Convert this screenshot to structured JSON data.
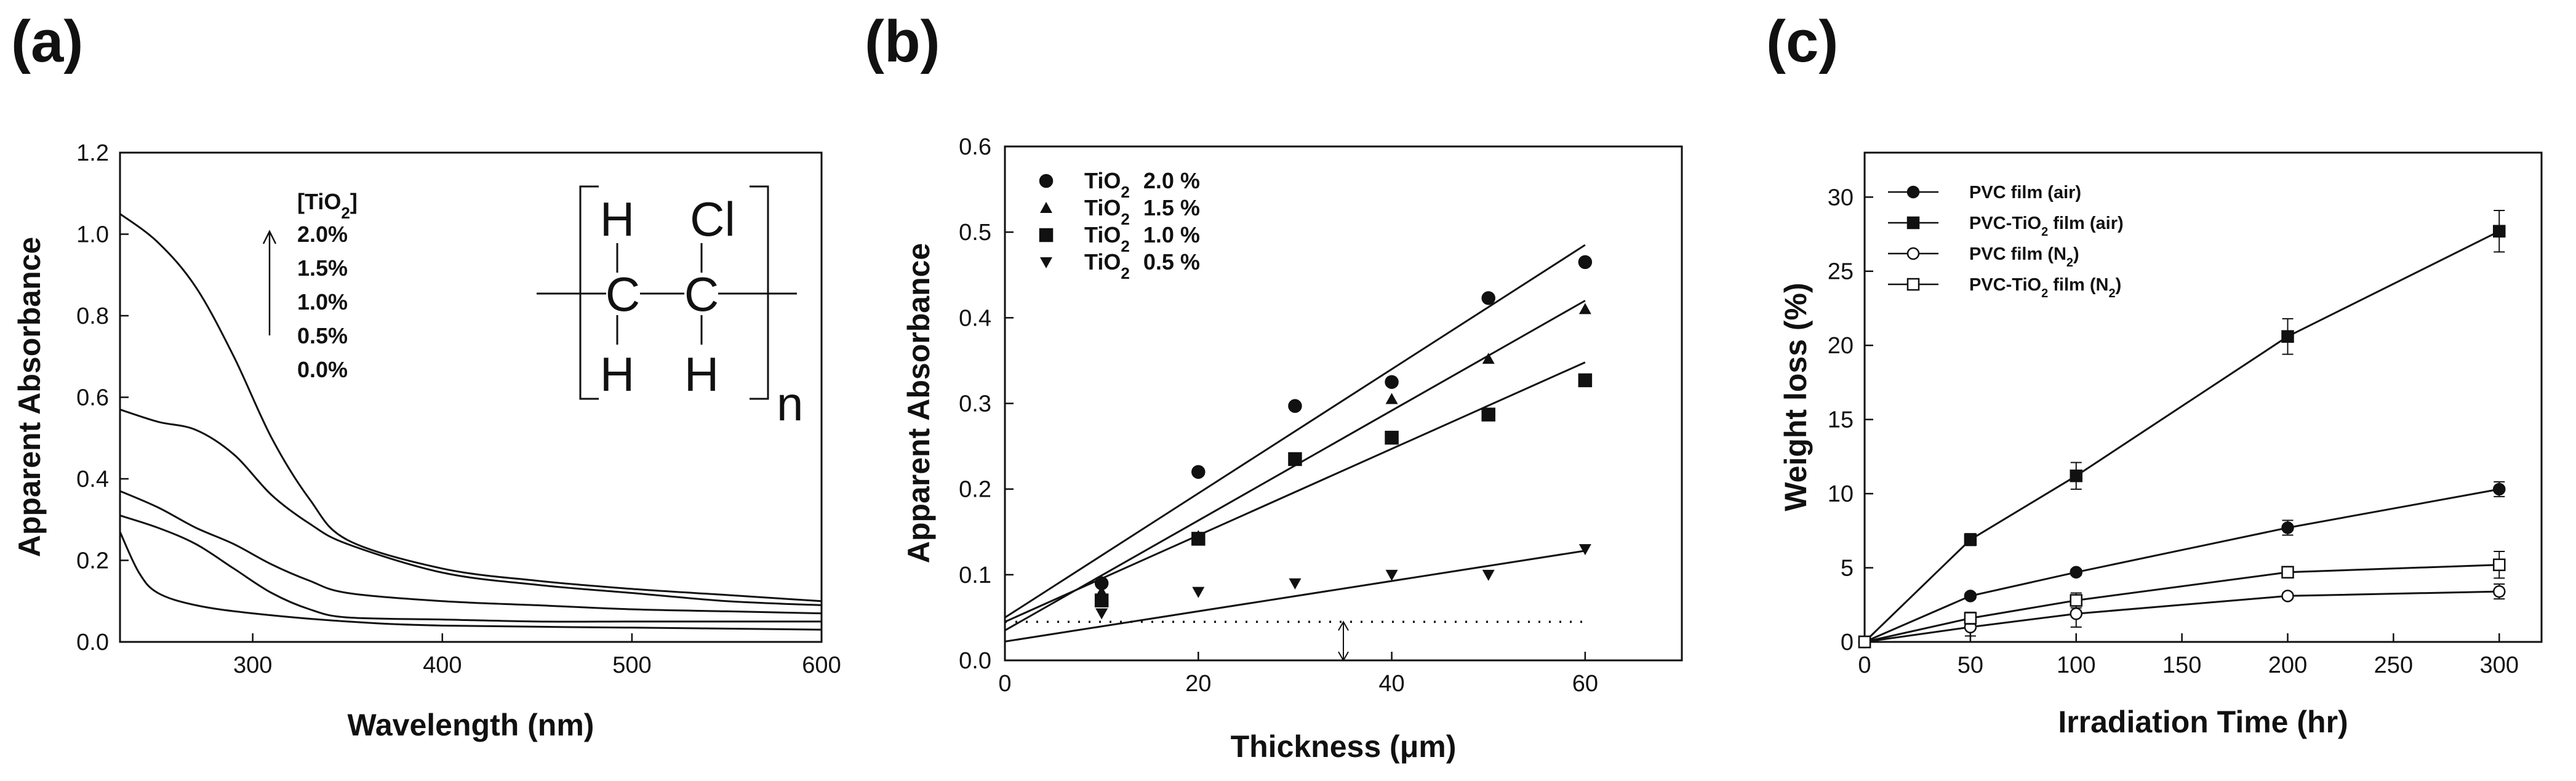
{
  "chart_data": [
    {
      "panel": "(a)",
      "type": "line",
      "xlabel": "Wavelength (nm)",
      "ylabel": "Apparent Absorbance",
      "xlim": [
        230,
        600
      ],
      "ylim": [
        0.0,
        1.2
      ],
      "xticks": [
        "300",
        "400",
        "500",
        "600"
      ],
      "xtick_values": [
        300,
        400,
        500,
        600
      ],
      "yticks": [
        "0.0",
        "0.2",
        "0.4",
        "0.6",
        "0.8",
        "1.0",
        "1.2"
      ],
      "ytick_values": [
        0.0,
        0.2,
        0.4,
        0.6,
        0.8,
        1.0,
        1.2
      ],
      "legend_title_main": "[TiO",
      "legend_title_sub": "2",
      "legend_title_close": "]",
      "legend": [
        "2.0%",
        "1.5%",
        "1.0%",
        "0.5%",
        "0.0%"
      ],
      "structure": {
        "h_top_left": "H",
        "cl_top_right": "Cl",
        "c_left": "C",
        "c_right": "C",
        "h_bottom_left": "H",
        "h_bottom_right": "H",
        "subscript": "n"
      },
      "series": [
        {
          "name": "2.0%",
          "x": [
            230,
            250,
            270,
            290,
            310,
            330,
            350,
            400,
            450,
            500,
            550,
            600
          ],
          "y": [
            1.05,
            0.98,
            0.87,
            0.7,
            0.5,
            0.35,
            0.25,
            0.18,
            0.15,
            0.13,
            0.115,
            0.1
          ]
        },
        {
          "name": "1.5%",
          "x": [
            230,
            250,
            270,
            290,
            310,
            330,
            350,
            400,
            450,
            500,
            550,
            600
          ],
          "y": [
            0.57,
            0.54,
            0.52,
            0.46,
            0.36,
            0.29,
            0.24,
            0.17,
            0.14,
            0.12,
            0.1,
            0.09
          ]
        },
        {
          "name": "1.0%",
          "x": [
            230,
            250,
            270,
            290,
            310,
            330,
            350,
            400,
            450,
            500,
            550,
            600
          ],
          "y": [
            0.37,
            0.33,
            0.28,
            0.24,
            0.19,
            0.15,
            0.12,
            0.1,
            0.09,
            0.08,
            0.075,
            0.07
          ]
        },
        {
          "name": "0.5%",
          "x": [
            230,
            250,
            270,
            290,
            310,
            330,
            350,
            400,
            450,
            500,
            550,
            600
          ],
          "y": [
            0.31,
            0.28,
            0.24,
            0.18,
            0.12,
            0.08,
            0.06,
            0.055,
            0.05,
            0.05,
            0.05,
            0.05
          ]
        },
        {
          "name": "0.0%",
          "x": [
            230,
            240,
            250,
            270,
            300,
            350,
            400,
            500,
            600
          ],
          "y": [
            0.27,
            0.17,
            0.12,
            0.09,
            0.07,
            0.05,
            0.04,
            0.035,
            0.03
          ]
        }
      ]
    },
    {
      "panel": "(b)",
      "type": "scatter",
      "xlabel": "Thickness (μm)",
      "ylabel": "Apparent Absorbance",
      "xlim": [
        0,
        70
      ],
      "ylim": [
        0.0,
        0.6
      ],
      "xticks": [
        "0",
        "20",
        "40",
        "60"
      ],
      "xtick_values": [
        0,
        20,
        40,
        60
      ],
      "yticks": [
        "0.0",
        "0.1",
        "0.2",
        "0.3",
        "0.4",
        "0.5",
        "0.6"
      ],
      "ytick_values": [
        0.0,
        0.1,
        0.2,
        0.3,
        0.4,
        0.5,
        0.6
      ],
      "legend_prefix": "TiO",
      "legend_sub": "2",
      "baseline_y": 0.045,
      "series": [
        {
          "name": "2.0 %",
          "marker": "circle",
          "x": [
            10,
            20,
            30,
            40,
            50,
            60
          ],
          "y": [
            0.09,
            0.22,
            0.297,
            0.325,
            0.423,
            0.465
          ],
          "fit": [
            [
              0,
              0.05
            ],
            [
              60,
              0.485
            ]
          ]
        },
        {
          "name": "1.5 %",
          "marker": "triangle-up",
          "x": [
            10,
            20,
            30,
            40,
            50,
            60
          ],
          "y": [
            0.08,
            0.145,
            0.235,
            0.305,
            0.352,
            0.41
          ],
          "fit": [
            [
              0,
              0.035
            ],
            [
              60,
              0.42
            ]
          ]
        },
        {
          "name": "1.0 %",
          "marker": "square",
          "x": [
            10,
            20,
            30,
            40,
            50,
            60
          ],
          "y": [
            0.07,
            0.142,
            0.235,
            0.26,
            0.287,
            0.327
          ],
          "fit": [
            [
              0,
              0.045
            ],
            [
              60,
              0.348
            ]
          ]
        },
        {
          "name": "0.5 %",
          "marker": "triangle-down",
          "x": [
            10,
            20,
            30,
            40,
            50,
            60
          ],
          "y": [
            0.055,
            0.08,
            0.09,
            0.1,
            0.1,
            0.13
          ],
          "fit": [
            [
              0,
              0.022
            ],
            [
              60,
              0.128
            ]
          ]
        }
      ]
    },
    {
      "panel": "(c)",
      "type": "line",
      "xlabel": "Irradiation Time (hr)",
      "ylabel": "Weight loss (%)",
      "xlim": [
        0,
        320
      ],
      "ylim": [
        0,
        33
      ],
      "xticks": [
        "0",
        "50",
        "100",
        "150",
        "200",
        "250",
        "300"
      ],
      "xtick_values": [
        0,
        50,
        100,
        150,
        200,
        250,
        300
      ],
      "yticks": [
        "0",
        "5",
        "10",
        "15",
        "20",
        "25",
        "30"
      ],
      "ytick_values": [
        0,
        5,
        10,
        15,
        20,
        25,
        30
      ],
      "series": [
        {
          "name": "PVC film (air)",
          "label_main": "PVC film (air)",
          "label_sub": "",
          "label_tail": "",
          "marker": "circle-filled",
          "x": [
            0,
            50,
            100,
            200,
            300
          ],
          "y": [
            0,
            3.1,
            4.7,
            7.7,
            10.3
          ],
          "err": [
            0,
            0.2,
            0.2,
            0.5,
            0.5
          ]
        },
        {
          "name": "PVC-TiO2 film (air)",
          "label_main": "PVC-TiO",
          "label_sub": "2",
          "label_tail": " film (air)",
          "marker": "square-filled",
          "x": [
            0,
            50,
            100,
            200,
            300
          ],
          "y": [
            0,
            6.9,
            11.2,
            20.6,
            27.7
          ],
          "err": [
            0,
            0.4,
            0.9,
            1.2,
            1.4
          ]
        },
        {
          "name": "PVC film (N2)",
          "label_main": "PVC film (N",
          "label_sub": "2",
          "label_tail": ")",
          "marker": "circle-open",
          "x": [
            0,
            50,
            100,
            200,
            300
          ],
          "y": [
            0,
            1.0,
            1.9,
            3.1,
            3.4
          ],
          "err": [
            0,
            0.6,
            0.9,
            0.2,
            0.5
          ]
        },
        {
          "name": "PVC-TiO2 film (N2)",
          "label_main": "PVC-TiO",
          "label_sub": "2",
          "label_tail": " film (N",
          "label_sub2": "2",
          "label_tail2": ")",
          "marker": "square-open",
          "x": [
            0,
            50,
            100,
            200,
            300
          ],
          "y": [
            0,
            1.6,
            2.8,
            4.7,
            5.2
          ],
          "err": [
            0,
            0.4,
            0.5,
            0.2,
            0.9
          ]
        }
      ]
    }
  ]
}
